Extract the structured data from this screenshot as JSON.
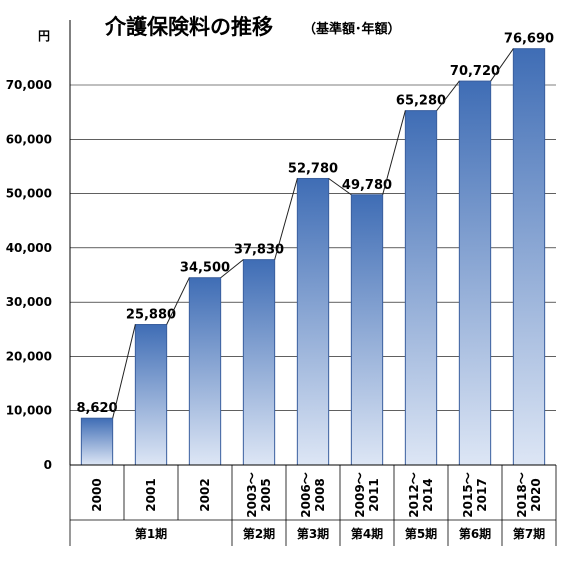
{
  "chart_data": {
    "type": "bar",
    "title": "介護保険料の推移",
    "subtitle": "（基準額･年額）",
    "ylabel": "円",
    "ylim": [
      0,
      70000
    ],
    "yticks": [
      0,
      10000,
      20000,
      30000,
      40000,
      50000,
      60000,
      70000
    ],
    "ytick_labels": [
      "0",
      "10,000",
      "20,000",
      "30,000",
      "40,000",
      "50,000",
      "60,000",
      "70,000"
    ],
    "categories": [
      "2000",
      "2001",
      "2002",
      "2003～2005",
      "2006～2008",
      "2009～2011",
      "2012～2014",
      "2015～2017",
      "2018～2020"
    ],
    "category_lines": [
      [
        "2000"
      ],
      [
        "2001"
      ],
      [
        "2002"
      ],
      [
        "2003～",
        "2005"
      ],
      [
        "2006～",
        "2008"
      ],
      [
        "2009～",
        "2011"
      ],
      [
        "2012～",
        "2014"
      ],
      [
        "2015～",
        "2017"
      ],
      [
        "2018～",
        "2020"
      ]
    ],
    "values": [
      8620,
      25880,
      34500,
      37830,
      52780,
      49780,
      65280,
      70720,
      76690
    ],
    "value_labels": [
      "8,620",
      "25,880",
      "34,500",
      "37,830",
      "52,780",
      "49,780",
      "65,280",
      "70,720",
      "76,690"
    ],
    "periods": [
      {
        "label": "第1期",
        "span": 3
      },
      {
        "label": "第2期",
        "span": 1
      },
      {
        "label": "第3期",
        "span": 1
      },
      {
        "label": "第4期",
        "span": 1
      },
      {
        "label": "第5期",
        "span": 1
      },
      {
        "label": "第6期",
        "span": 1
      },
      {
        "label": "第7期",
        "span": 1
      }
    ],
    "grid": true,
    "connector_line": true,
    "colors": {
      "bar_top": "#3f6db5",
      "bar_bottom": "#dde6f5",
      "bar_edge": "#3a5f9e",
      "grid": "#000000"
    }
  }
}
